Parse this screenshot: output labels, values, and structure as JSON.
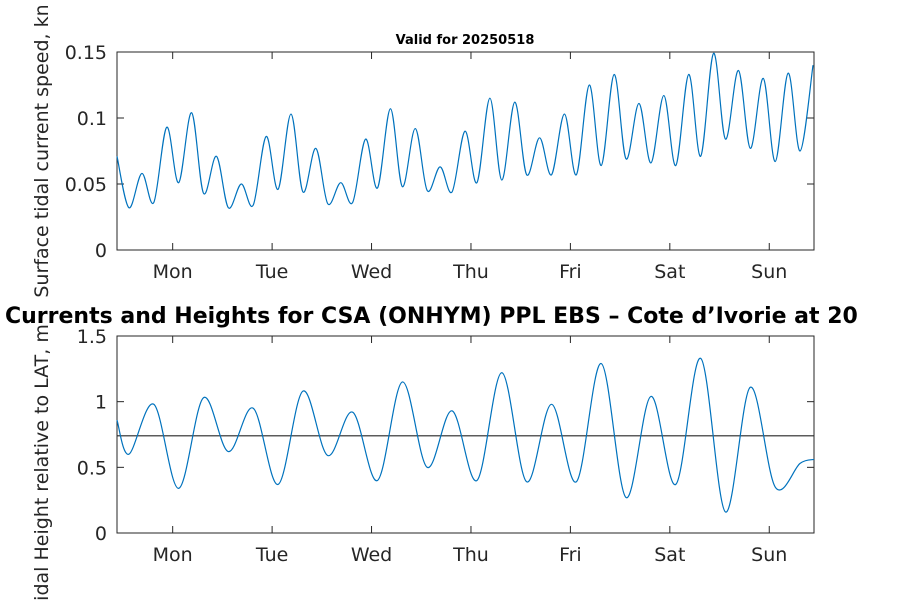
{
  "chart_data": [
    {
      "type": "line",
      "title": "Valid for 20250518",
      "ylabel": "Surface tidal current speed, kn",
      "xlabel": "",
      "ylim": [
        0,
        0.15
      ],
      "yticks": [
        0,
        0.05,
        0.1,
        0.15
      ],
      "ytick_labels": [
        "0",
        "0.05",
        "0.1",
        "0.15"
      ],
      "xlim_days": [
        -0.56,
        6.45
      ],
      "xticks": [
        0,
        1,
        2,
        3,
        4,
        5,
        6
      ],
      "xtick_labels": [
        "Mon",
        "Tue",
        "Wed",
        "Thu",
        "Fri",
        "Sat",
        "Sun"
      ],
      "grid": false,
      "line_color": "#0072BD",
      "series": [
        {
          "x": [
            -0.56,
            -0.44,
            -0.31,
            -0.19,
            -0.06,
            0.06,
            0.19,
            0.31,
            0.44,
            0.56,
            0.69,
            0.81,
            0.94,
            1.06,
            1.19,
            1.31,
            1.44,
            1.56,
            1.69,
            1.81,
            1.94,
            2.06,
            2.19,
            2.31,
            2.44,
            2.56,
            2.69,
            2.81,
            2.94,
            3.06,
            3.19,
            3.31,
            3.44,
            3.56,
            3.69,
            3.81,
            3.94,
            4.06,
            4.19,
            4.31,
            4.44,
            4.56,
            4.69,
            4.81,
            4.94,
            5.06,
            5.19,
            5.31,
            5.44,
            5.56,
            5.69,
            5.81,
            5.94,
            6.06,
            6.19,
            6.31,
            6.44
          ],
          "values": [
            0.071,
            0.032,
            0.058,
            0.036,
            0.093,
            0.051,
            0.104,
            0.043,
            0.071,
            0.032,
            0.05,
            0.034,
            0.086,
            0.046,
            0.103,
            0.044,
            0.077,
            0.035,
            0.051,
            0.036,
            0.084,
            0.047,
            0.107,
            0.048,
            0.092,
            0.045,
            0.063,
            0.044,
            0.09,
            0.051,
            0.115,
            0.053,
            0.112,
            0.057,
            0.085,
            0.057,
            0.103,
            0.057,
            0.125,
            0.064,
            0.133,
            0.069,
            0.111,
            0.066,
            0.117,
            0.064,
            0.133,
            0.071,
            0.149,
            0.084,
            0.136,
            0.077,
            0.13,
            0.067,
            0.134,
            0.075,
            0.14
          ]
        }
      ]
    },
    {
      "type": "line",
      "title": "Currents and Heights for CSA (ONHYM) PPL EBS  – Cote d’Ivorie at 20",
      "ylabel": "Tidal Height relative to LAT, m",
      "xlabel": "",
      "ylim": [
        0,
        1.5
      ],
      "yticks": [
        0,
        0.5,
        1,
        1.5
      ],
      "ytick_labels": [
        "0",
        "0.5",
        "1",
        "1.5"
      ],
      "xlim_days": [
        -0.56,
        6.45
      ],
      "xticks": [
        0,
        1,
        2,
        3,
        4,
        5,
        6
      ],
      "xtick_labels": [
        "Mon",
        "Tue",
        "Wed",
        "Thu",
        "Fri",
        "Sat",
        "Sun"
      ],
      "grid": false,
      "line_color": "#0072BD",
      "reference_line": {
        "y": 0.74,
        "color": "#262626"
      },
      "series": [
        {
          "x": [
            -0.56,
            -0.44,
            -0.19,
            0.06,
            0.31,
            0.56,
            0.81,
            1.06,
            1.31,
            1.56,
            1.81,
            2.06,
            2.31,
            2.56,
            2.81,
            3.06,
            3.31,
            3.56,
            3.81,
            4.06,
            4.31,
            4.56,
            4.81,
            5.06,
            5.31,
            5.56,
            5.81,
            6.06,
            6.31,
            6.45
          ],
          "values": [
            0.86,
            0.6,
            0.98,
            0.34,
            1.03,
            0.62,
            0.95,
            0.37,
            1.08,
            0.59,
            0.92,
            0.4,
            1.15,
            0.5,
            0.93,
            0.4,
            1.22,
            0.39,
            0.98,
            0.39,
            1.29,
            0.27,
            1.04,
            0.37,
            1.33,
            0.16,
            1.11,
            0.35,
            0.53,
            0.56
          ]
        }
      ]
    }
  ]
}
